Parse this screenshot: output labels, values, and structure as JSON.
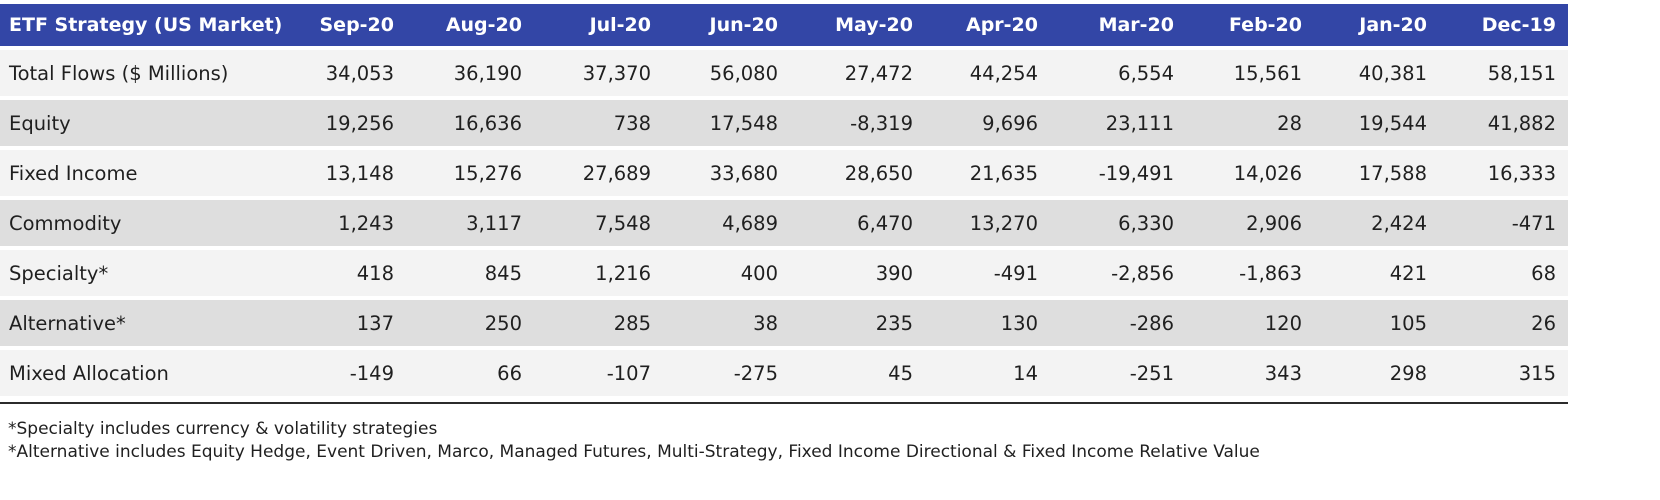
{
  "table": {
    "header": [
      "ETF Strategy (US Market)",
      "Sep-20",
      "Aug-20",
      "Jul-20",
      "Jun-20",
      "May-20",
      "Apr-20",
      "Mar-20",
      "Feb-20",
      "Jan-20",
      "Dec-19"
    ],
    "rows": [
      [
        "Total Flows ($ Millions)",
        "34,053",
        "36,190",
        "37,370",
        "56,080",
        "27,472",
        "44,254",
        "6,554",
        "15,561",
        "40,381",
        "58,151"
      ],
      [
        "Equity",
        "19,256",
        "16,636",
        "738",
        "17,548",
        "-8,319",
        "9,696",
        "23,111",
        "28",
        "19,544",
        "41,882"
      ],
      [
        "Fixed Income",
        "13,148",
        "15,276",
        "27,689",
        "33,680",
        "28,650",
        "21,635",
        "-19,491",
        "14,026",
        "17,588",
        "16,333"
      ],
      [
        "Commodity",
        "1,243",
        "3,117",
        "7,548",
        "4,689",
        "6,470",
        "13,270",
        "6,330",
        "2,906",
        "2,424",
        "-471"
      ],
      [
        "Specialty*",
        "418",
        "845",
        "1,216",
        "400",
        "390",
        "-491",
        "-2,856",
        "-1,863",
        "421",
        "68"
      ],
      [
        "Alternative*",
        "137",
        "250",
        "285",
        "38",
        "235",
        "130",
        "-286",
        "120",
        "105",
        "26"
      ],
      [
        "Mixed Allocation",
        "-149",
        "66",
        "-107",
        "-275",
        "45",
        "14",
        "-251",
        "343",
        "298",
        "315"
      ]
    ]
  },
  "footnotes": [
    "*Specialty includes currency & volatility strategies",
    "*Alternative includes Equity Hedge, Event Driven, Marco, Managed Futures, Multi-Strategy, Fixed Income Directional & Fixed Income Relative Value"
  ],
  "colors": {
    "header_bg": "#3346a6",
    "header_text": "#ffffff",
    "row_light": "#f3f3f3",
    "row_dark": "#dedede",
    "rule": "#2b2b2b"
  }
}
